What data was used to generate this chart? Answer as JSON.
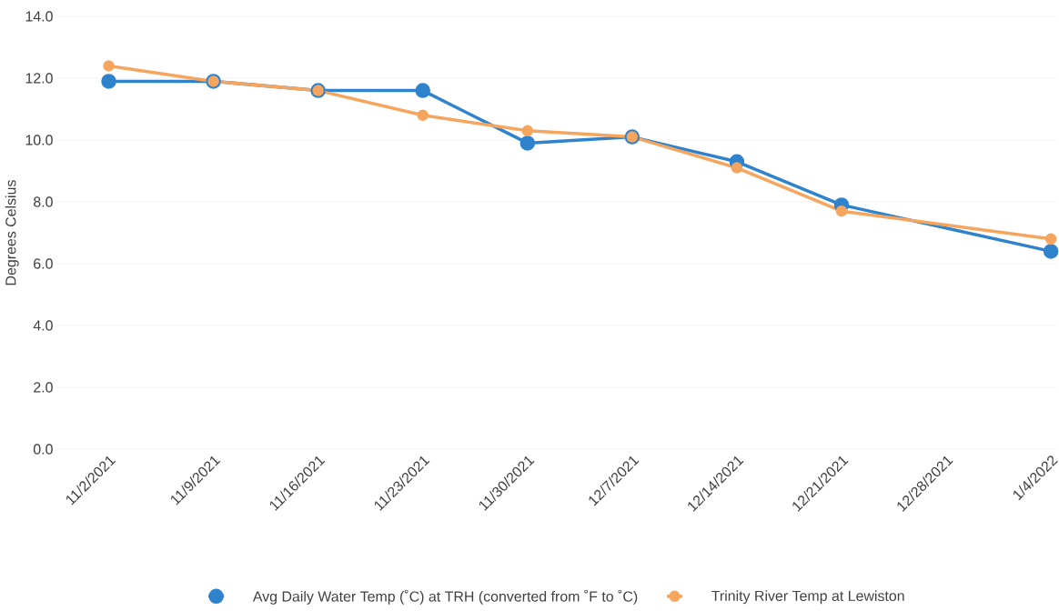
{
  "chart_data": {
    "type": "line",
    "ylabel": "Degrees Celsius",
    "categories": [
      "11/2/2021",
      "11/9/2021",
      "11/16/2021",
      "11/23/2021",
      "11/30/2021",
      "12/7/2021",
      "12/14/2021",
      "12/21/2021",
      "12/28/2021",
      "1/4/2022"
    ],
    "series": [
      {
        "name": "Avg Daily Water Temp (˚C) at TRH (converted from ˚F to ˚C)",
        "color": "#2e83cc",
        "values": [
          11.9,
          11.9,
          11.6,
          11.6,
          9.9,
          10.1,
          9.3,
          7.9,
          null,
          6.4
        ]
      },
      {
        "name": "Trinity River Temp at Lewiston",
        "color": "#f5a55e",
        "values": [
          12.4,
          11.9,
          11.6,
          10.8,
          10.3,
          10.1,
          9.1,
          7.7,
          null,
          6.8
        ]
      }
    ],
    "ylim": [
      0,
      14
    ],
    "yticks": [
      {
        "value": 0,
        "label": "0.0"
      },
      {
        "value": 2,
        "label": "2.0"
      },
      {
        "value": 4,
        "label": "4.0"
      },
      {
        "value": 6,
        "label": "6.0"
      },
      {
        "value": 8,
        "label": "8.0"
      },
      {
        "value": 10,
        "label": "10.0"
      },
      {
        "value": 12,
        "label": "12.0"
      },
      {
        "value": 14,
        "label": "14.0"
      }
    ],
    "grid": "y",
    "legend": "bottom",
    "marker": "circle",
    "line_style": "solid"
  }
}
